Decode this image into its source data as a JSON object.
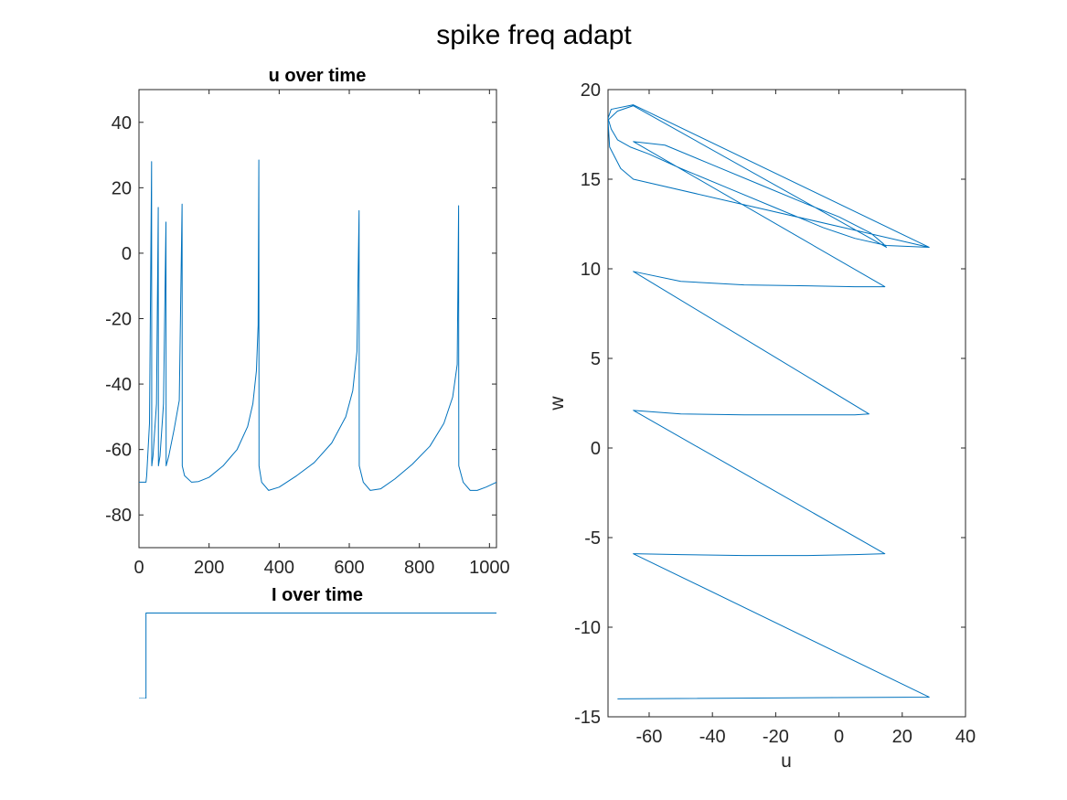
{
  "figure_title": "spike freq adapt",
  "chart_data": [
    {
      "type": "line",
      "title": "u over time",
      "xlabel": "",
      "ylabel": "",
      "xlim": [
        0,
        1020
      ],
      "ylim": [
        -90,
        50
      ],
      "xticks": [
        0,
        200,
        400,
        600,
        800,
        1000
      ],
      "yticks": [
        -80,
        -60,
        -40,
        -20,
        0,
        20,
        40
      ],
      "xtick_labels": [
        "0",
        "200",
        "400",
        "600",
        "800",
        "1000"
      ],
      "ytick_labels": [
        "-80",
        "-60",
        "-40",
        "-20",
        "0",
        "20",
        "40"
      ],
      "grid": false,
      "color": "#0072BD",
      "spike_times": [
        36,
        55,
        77,
        123,
        342,
        628,
        912
      ],
      "spike_peaks": [
        28,
        14,
        9.5,
        15,
        28.5,
        13,
        14.5
      ],
      "x": [
        0,
        20,
        22,
        30,
        36,
        36.5,
        40,
        50,
        55,
        55.5,
        60,
        70,
        77,
        77.5,
        85,
        100,
        115,
        123,
        123.5,
        130,
        150,
        170,
        200,
        240,
        280,
        310,
        325,
        335,
        340,
        342,
        342.5,
        350,
        370,
        400,
        450,
        500,
        550,
        590,
        610,
        622,
        628,
        628.5,
        640,
        660,
        690,
        730,
        780,
        830,
        870,
        895,
        908,
        912,
        912.5,
        925,
        945,
        965,
        990,
        1020
      ],
      "values": [
        -70,
        -70,
        -68,
        -52,
        28,
        -65,
        -62,
        -46,
        14,
        -65,
        -62,
        -46,
        9.5,
        -65,
        -62,
        -54,
        -45,
        15,
        -65,
        -68,
        -70,
        -69.8,
        -68.5,
        -65,
        -60,
        -53,
        -46,
        -36,
        -22,
        28.5,
        -65,
        -70,
        -72.5,
        -71.5,
        -68,
        -64,
        -58,
        -50,
        -42,
        -30,
        13,
        -65,
        -70,
        -72.5,
        -72,
        -69,
        -64.5,
        -59,
        -52,
        -44,
        -34,
        14.5,
        -65,
        -70,
        -72.5,
        -72.5,
        -71.5,
        -70
      ]
    },
    {
      "type": "line",
      "title": "I over time",
      "xlabel": "",
      "ylabel": "",
      "xlim": [
        0,
        1020
      ],
      "ylim": [
        0,
        1.08
      ],
      "axis_visible": false,
      "color": "#0072BD",
      "x": [
        0,
        20,
        20,
        1020
      ],
      "values": [
        0,
        0,
        1,
        1
      ]
    },
    {
      "type": "line",
      "title": "",
      "xlabel": "u",
      "ylabel": "w",
      "xlim": [
        -73,
        40
      ],
      "ylim": [
        -15,
        20
      ],
      "xticks": [
        -60,
        -40,
        -20,
        0,
        20,
        40
      ],
      "yticks": [
        -15,
        -10,
        -5,
        0,
        5,
        10,
        15,
        20
      ],
      "xtick_labels": [
        "-60",
        "-40",
        "-20",
        "0",
        "20",
        "40"
      ],
      "ytick_labels": [
        "-15",
        "-10",
        "-5",
        "0",
        "5",
        "10",
        "15",
        "20"
      ],
      "grid": false,
      "color": "#0072BD",
      "x": [
        -70,
        28.5,
        -65,
        -50,
        -30,
        -10,
        5,
        14.5,
        -65,
        -50,
        -30,
        -10,
        5,
        9.5,
        -65,
        -50,
        -30,
        -10,
        5,
        14.5,
        -65,
        -55,
        -40,
        -25,
        -10,
        0,
        10,
        14,
        15,
        -65,
        -70,
        -73,
        -72.5,
        -69,
        -65,
        28.5,
        -65,
        -72,
        -73,
        -72,
        -70,
        -66,
        -60,
        -50,
        -35,
        -20,
        -5,
        5,
        15,
        28.5
      ],
      "values": [
        -14,
        -13.9,
        -5.9,
        -5.95,
        -6,
        -6,
        -5.95,
        -5.9,
        2.1,
        1.9,
        1.85,
        1.85,
        1.85,
        1.9,
        9.85,
        9.3,
        9.1,
        9.05,
        9.0,
        9.0,
        17.1,
        16.9,
        15.8,
        14.7,
        13.6,
        12.9,
        12.0,
        11.4,
        11.2,
        19.1,
        18.8,
        18.3,
        16.8,
        15.6,
        15,
        11.2,
        19.15,
        18.9,
        18.4,
        17.8,
        17.2,
        16.8,
        16.4,
        15.6,
        14.5,
        13.4,
        12.3,
        11.7,
        11.3,
        11.2
      ]
    }
  ]
}
